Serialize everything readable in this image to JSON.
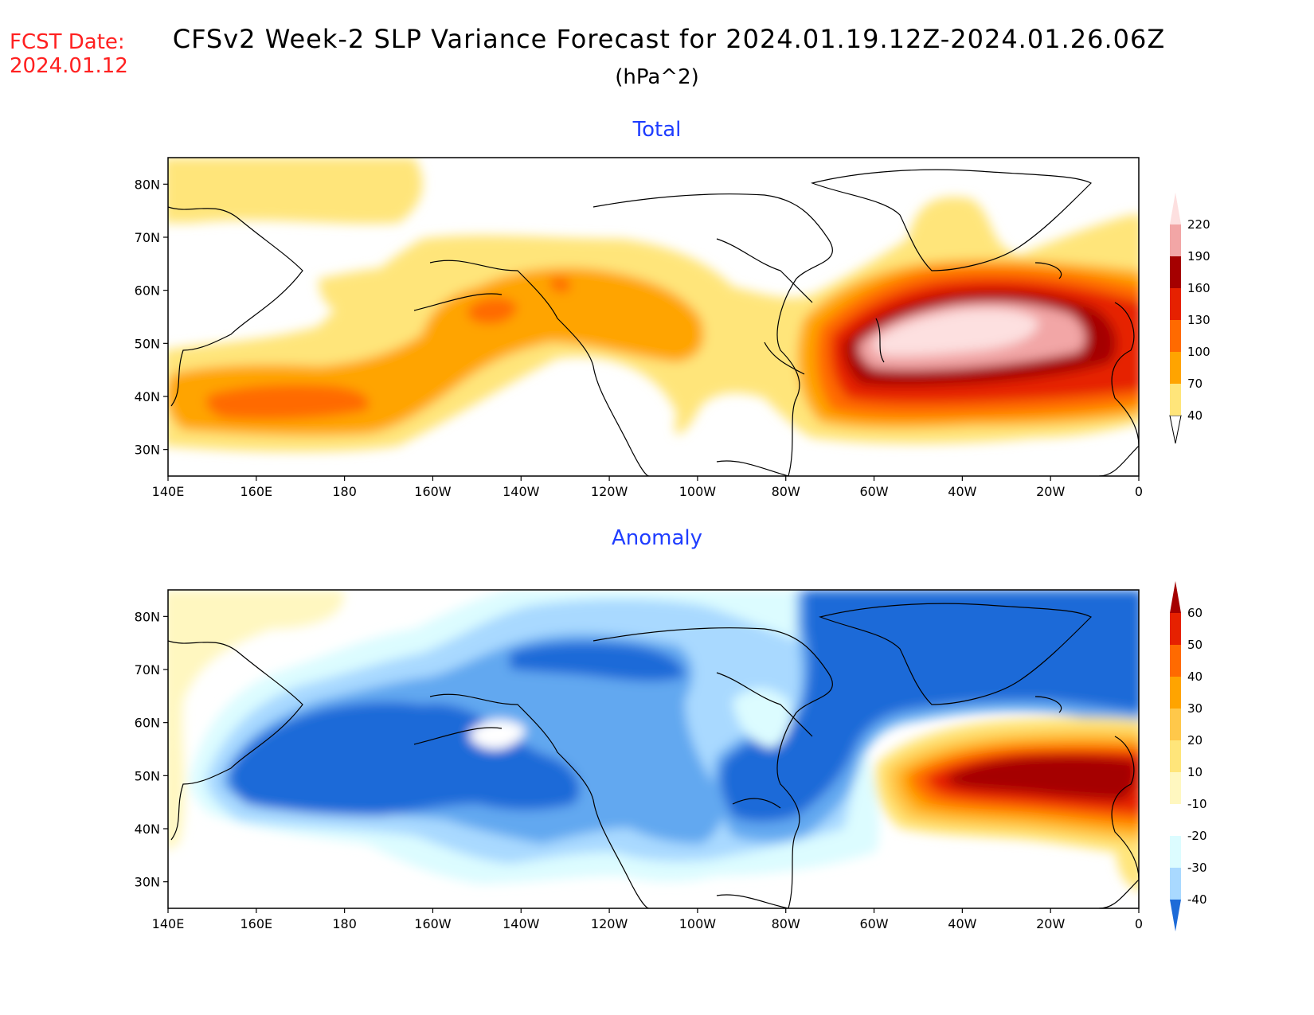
{
  "header": {
    "fcst_label": "FCST Date:",
    "fcst_date": "2024.01.12",
    "title": "CFSv2 Week-2 SLP Variance Forecast for 2024.01.19.12Z-2024.01.26.06Z",
    "units": "(hPa^2)"
  },
  "panels": {
    "total": {
      "title": "Total",
      "x_ticks": [
        "140E",
        "160E",
        "180",
        "160W",
        "140W",
        "120W",
        "100W",
        "80W",
        "60W",
        "40W",
        "20W",
        "0"
      ],
      "y_ticks": [
        "30N",
        "40N",
        "50N",
        "60N",
        "70N",
        "80N"
      ],
      "colorbar": {
        "labels": [
          "40",
          "70",
          "100",
          "130",
          "160",
          "190",
          "220"
        ],
        "colors": [
          "#ffe57a",
          "#ffa400",
          "#ff6a00",
          "#e62100",
          "#a50000",
          "#f2a6a6",
          "#fde0e0"
        ]
      }
    },
    "anomaly": {
      "title": "Anomaly",
      "x_ticks": [
        "140E",
        "160E",
        "180",
        "160W",
        "140W",
        "120W",
        "100W",
        "80W",
        "60W",
        "40W",
        "20W",
        "0"
      ],
      "y_ticks": [
        "30N",
        "40N",
        "50N",
        "60N",
        "70N",
        "80N"
      ],
      "colorbar": {
        "labels": [
          "60",
          "50",
          "40",
          "30",
          "20",
          "10",
          "-10",
          "-20",
          "-30",
          "-40"
        ],
        "colors": [
          "#a50000",
          "#e62100",
          "#ff6a00",
          "#ffa400",
          "#ffc84a",
          "#ffe57a",
          "#fff7c0",
          "#ffffff",
          "#dcfcff",
          "#a9d9ff",
          "#62a8f0",
          "#1d6bd8"
        ]
      }
    }
  }
}
